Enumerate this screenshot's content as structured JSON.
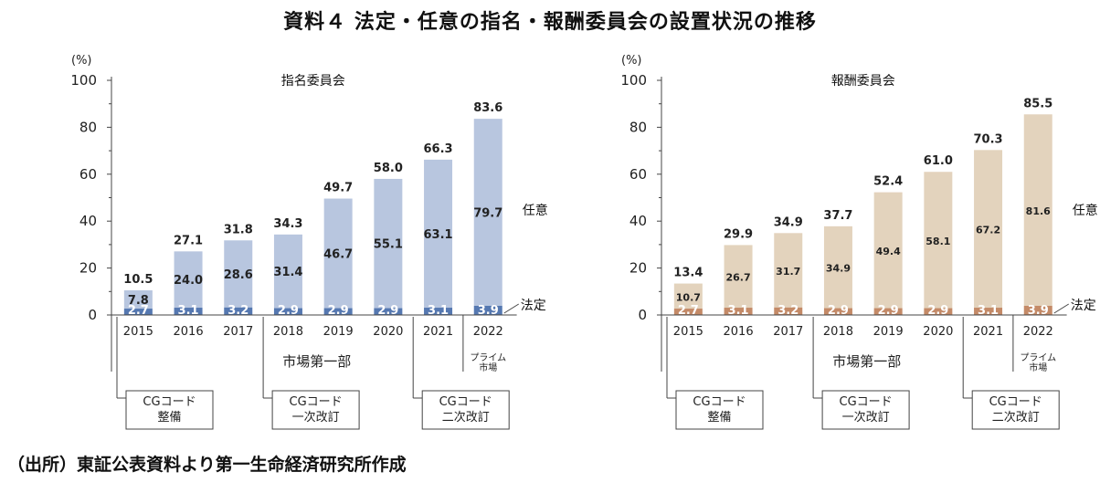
{
  "page": {
    "title": "資料４ 法定・任意の指名・報酬委員会の設置状況の推移",
    "source": "（出所）東証公表資料より第一生命経済研究所作成"
  },
  "colors": {
    "nomination_voluntary": "#b8c6df",
    "nomination_statutory": "#5578b1",
    "compensation_voluntary": "#e3d3bd",
    "compensation_statutory": "#c48a67"
  },
  "chart_data": [
    {
      "type": "bar",
      "stacked": true,
      "title": "指名委員会",
      "yunit": "(%)",
      "ylim": [
        0,
        100
      ],
      "yticks": [
        0,
        20,
        40,
        60,
        80,
        100
      ],
      "categories": [
        "2015",
        "2016",
        "2017",
        "2018",
        "2019",
        "2020",
        "2021",
        "2022"
      ],
      "series": [
        {
          "name": "法定",
          "values": [
            2.7,
            3.1,
            3.2,
            2.9,
            2.9,
            2.9,
            3.1,
            3.9
          ]
        },
        {
          "name": "任意",
          "values": [
            7.8,
            24.0,
            28.6,
            31.4,
            46.7,
            55.1,
            63.1,
            79.7
          ]
        }
      ],
      "totals": [
        10.5,
        27.1,
        31.8,
        34.3,
        49.7,
        58.0,
        66.3,
        83.6
      ],
      "statutory_labels": [
        "2.7",
        "3.1",
        "3.2",
        "2.9",
        "2.9",
        "2.9",
        "3.1",
        "3.9"
      ],
      "voluntary_labels": [
        "7.8",
        "24.0",
        "28.6",
        "31.4",
        "46.7",
        "55.1",
        "63.1",
        "79.7"
      ],
      "total_labels": [
        "10.5",
        "27.1",
        "31.8",
        "34.3",
        "49.7",
        "58.0",
        "66.3",
        "83.6"
      ],
      "legend_voluntary": "任意",
      "legend_statutory": "法定",
      "market_label": "市場第一部",
      "prime_label": [
        "プライム",
        "市場"
      ],
      "notes": [
        {
          "lines": [
            "CGコード",
            "整備"
          ],
          "at_category": "2015"
        },
        {
          "lines": [
            "CGコード",
            "一次改訂"
          ],
          "at_category": "2018"
        },
        {
          "lines": [
            "CGコード",
            "二次改訂"
          ],
          "at_category": "2021"
        }
      ]
    },
    {
      "type": "bar",
      "stacked": true,
      "title": "報酬委員会",
      "yunit": "(%)",
      "ylim": [
        0,
        100
      ],
      "yticks": [
        0,
        20,
        40,
        60,
        80,
        100
      ],
      "categories": [
        "2015",
        "2016",
        "2017",
        "2018",
        "2019",
        "2020",
        "2021",
        "2022"
      ],
      "series": [
        {
          "name": "法定",
          "values": [
            2.7,
            3.1,
            3.2,
            2.9,
            2.9,
            2.9,
            3.1,
            3.9
          ]
        },
        {
          "name": "任意",
          "values": [
            10.7,
            26.7,
            31.7,
            34.9,
            49.4,
            58.1,
            67.2,
            81.6
          ]
        }
      ],
      "totals": [
        13.4,
        29.9,
        34.9,
        37.7,
        52.4,
        61.0,
        70.3,
        85.5
      ],
      "statutory_labels": [
        "2.7",
        "3.1",
        "3.2",
        "2.9",
        "2.9",
        "2.9",
        "3.1",
        "3.9"
      ],
      "voluntary_labels": [
        "10.7",
        "26.7",
        "31.7",
        "34.9",
        "49.4",
        "58.1",
        "67.2",
        "81.6"
      ],
      "total_labels": [
        "13.4",
        "29.9",
        "34.9",
        "37.7",
        "52.4",
        "61.0",
        "70.3",
        "85.5"
      ],
      "legend_voluntary": "任意",
      "legend_statutory": "法定",
      "market_label": "市場第一部",
      "prime_label": [
        "プライム",
        "市場"
      ],
      "notes": [
        {
          "lines": [
            "CGコード",
            "整備"
          ],
          "at_category": "2015"
        },
        {
          "lines": [
            "CGコード",
            "一次改訂"
          ],
          "at_category": "2018"
        },
        {
          "lines": [
            "CGコード",
            "二次改訂"
          ],
          "at_category": "2021"
        }
      ]
    }
  ]
}
